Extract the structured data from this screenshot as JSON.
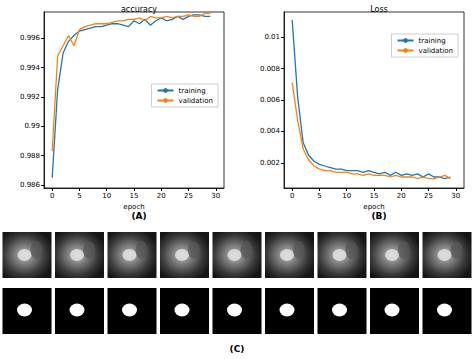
{
  "chart_data": [
    {
      "type": "line",
      "title": "accuracy",
      "subtitle": "(A)",
      "xlabel": "epoch",
      "x": [
        0,
        1,
        2,
        3,
        4,
        5,
        6,
        7,
        8,
        9,
        10,
        11,
        12,
        13,
        14,
        15,
        16,
        17,
        18,
        19,
        20,
        21,
        22,
        23,
        24,
        25,
        26,
        27,
        28,
        29
      ],
      "series": [
        {
          "name": "training",
          "color": "#1f77b4",
          "values": [
            0.9865,
            0.9925,
            0.995,
            0.9958,
            0.9962,
            0.9965,
            0.9966,
            0.9967,
            0.9968,
            0.9968,
            0.9969,
            0.997,
            0.997,
            0.9969,
            0.9968,
            0.9972,
            0.997,
            0.9973,
            0.9969,
            0.9972,
            0.9974,
            0.9972,
            0.9973,
            0.9975,
            0.9973,
            0.9975,
            0.9976,
            0.9976,
            0.9975,
            0.9975
          ]
        },
        {
          "name": "validation",
          "color": "#ff7f0e",
          "values": [
            0.9883,
            0.9948,
            0.9955,
            0.9962,
            0.9955,
            0.9966,
            0.9968,
            0.9969,
            0.997,
            0.997,
            0.997,
            0.9971,
            0.9972,
            0.9972,
            0.9973,
            0.9973,
            0.9974,
            0.9972,
            0.9975,
            0.9974,
            0.9974,
            0.9975,
            0.9974,
            0.9975,
            0.9975,
            0.9976,
            0.9975,
            0.9975,
            0.9977,
            0.9977
          ]
        }
      ],
      "xlim": [
        -1.5,
        31.5
      ],
      "xticks": [
        0,
        5,
        10,
        15,
        20,
        25,
        30
      ],
      "ylim": [
        0.9858,
        0.9978
      ],
      "yticks": [
        0.986,
        0.988,
        0.99,
        0.992,
        0.994,
        0.996
      ],
      "grid": false,
      "legend": "right"
    },
    {
      "type": "line",
      "title": "Loss",
      "subtitle": "(B)",
      "xlabel": "epoch",
      "x": [
        0,
        1,
        2,
        3,
        4,
        5,
        6,
        7,
        8,
        9,
        10,
        11,
        12,
        13,
        14,
        15,
        16,
        17,
        18,
        19,
        20,
        21,
        22,
        23,
        24,
        25,
        26,
        27,
        28,
        29
      ],
      "series": [
        {
          "name": "training",
          "color": "#1f77b4",
          "values": [
            0.0111,
            0.0062,
            0.0033,
            0.0025,
            0.0021,
            0.0019,
            0.0018,
            0.0017,
            0.0016,
            0.0016,
            0.0015,
            0.0015,
            0.0015,
            0.0014,
            0.0015,
            0.0014,
            0.0013,
            0.0014,
            0.0012,
            0.0014,
            0.0012,
            0.0013,
            0.0012,
            0.0013,
            0.0011,
            0.0013,
            0.0011,
            0.0011,
            0.001,
            0.0011
          ]
        },
        {
          "name": "validation",
          "color": "#ff7f0e",
          "values": [
            0.0071,
            0.0047,
            0.0029,
            0.0022,
            0.0018,
            0.0016,
            0.0015,
            0.0015,
            0.0014,
            0.0014,
            0.0014,
            0.0013,
            0.0013,
            0.0012,
            0.0013,
            0.0012,
            0.0012,
            0.0012,
            0.0011,
            0.0012,
            0.0011,
            0.0011,
            0.0011,
            0.001,
            0.0011,
            0.001,
            0.001,
            0.0011,
            0.0012,
            0.001
          ]
        }
      ],
      "xlim": [
        -1.5,
        31.5
      ],
      "xticks": [
        0,
        5,
        10,
        15,
        20,
        25,
        30
      ],
      "ylim": [
        0.0004,
        0.0116
      ],
      "yticks": [
        0.002,
        0.004,
        0.006,
        0.008,
        0.01
      ],
      "grid": false,
      "legend": "upper right"
    }
  ],
  "panel_c": {
    "label": "(C)"
  }
}
